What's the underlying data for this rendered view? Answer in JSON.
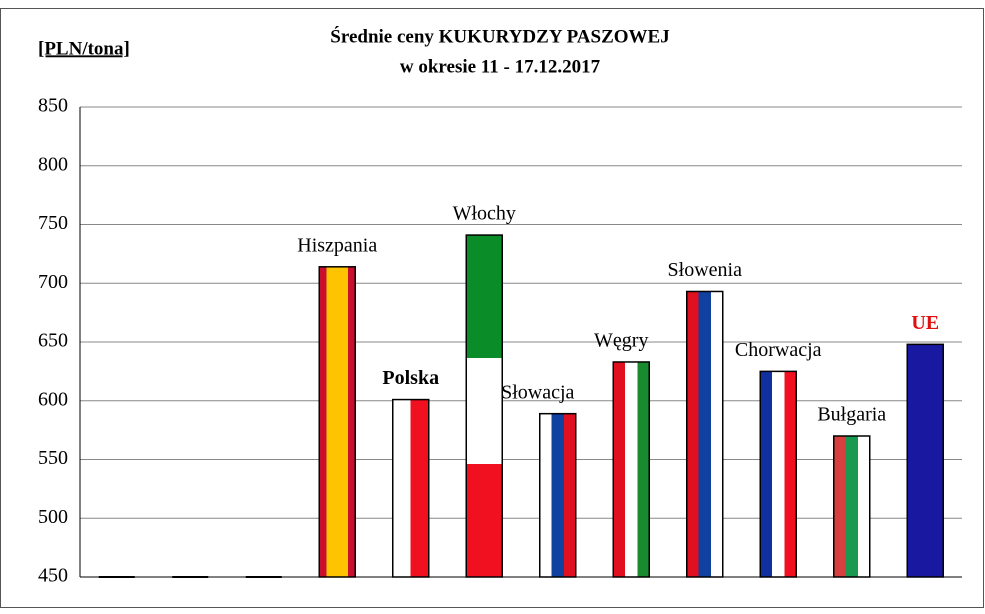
{
  "chart_data": {
    "type": "bar",
    "title": "Średnie ceny KUKURYDZY PASZOWEJ",
    "subtitle": "w okresie  11 - 17.12.2017",
    "y_axis_label": "[PLN/tona]",
    "categories": [
      null,
      null,
      null,
      "Hiszpania",
      "Polska",
      "Włochy",
      "Słowacja",
      "Węgry",
      "Słowenia",
      "Chorwacja",
      "Bułgaria",
      "UE"
    ],
    "values": [
      450,
      450,
      450,
      714,
      601,
      741,
      589,
      633,
      693,
      625,
      570,
      648
    ],
    "ylim": [
      450,
      850
    ],
    "yticks": [
      450,
      500,
      550,
      600,
      650,
      700,
      750,
      800,
      850
    ],
    "grid": true
  }
}
